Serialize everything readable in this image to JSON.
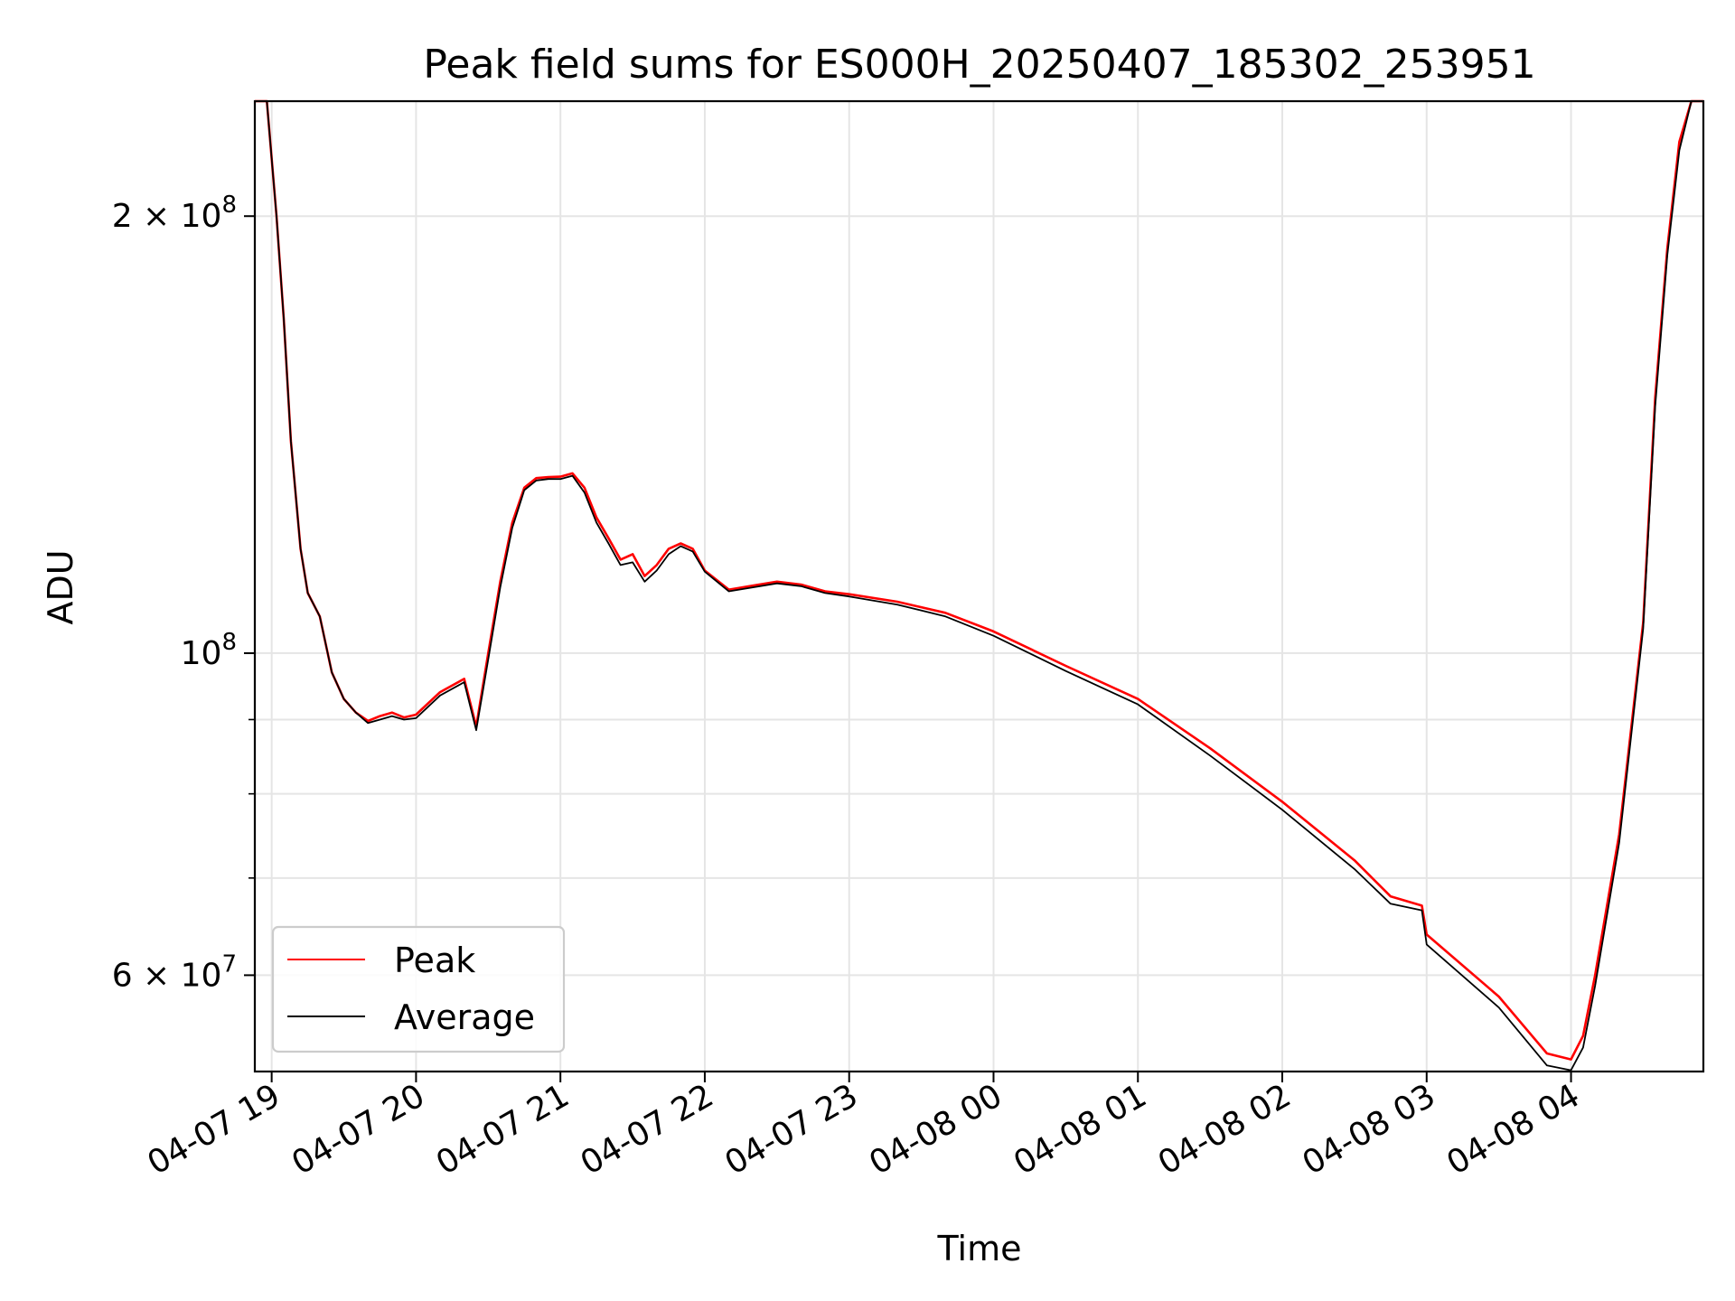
{
  "chart_data": {
    "type": "line",
    "title": "Peak field sums for ES000H_20250407_185302_253951",
    "xlabel": "Time",
    "ylabel": "ADU",
    "y_scale": "log",
    "ylim": [
      51500000,
      240000000
    ],
    "xlim": [
      "2025-04-07 18:53",
      "2025-04-08 04:55"
    ],
    "grid": true,
    "legend_position": "lower-left",
    "x_ticks": [
      "04-07 19",
      "04-07 20",
      "04-07 21",
      "04-07 22",
      "04-07 23",
      "04-08 00",
      "04-08 01",
      "04-08 02",
      "04-08 03",
      "04-08 04"
    ],
    "y_major_ticks": [
      {
        "value": 200000000,
        "mantissa": "2",
        "exponent": "8"
      },
      {
        "value": 100000000,
        "mantissa": "",
        "exponent": "8"
      },
      {
        "value": 60000000,
        "mantissa": "6",
        "exponent": "7"
      }
    ],
    "y_minor_ticks": [
      90000000,
      80000000,
      70000000
    ],
    "x": [
      "2025-04-07 18:53",
      "2025-04-07 18:58",
      "2025-04-07 19:02",
      "2025-04-07 19:05",
      "2025-04-07 19:08",
      "2025-04-07 19:12",
      "2025-04-07 19:15",
      "2025-04-07 19:20",
      "2025-04-07 19:25",
      "2025-04-07 19:30",
      "2025-04-07 19:35",
      "2025-04-07 19:40",
      "2025-04-07 19:45",
      "2025-04-07 19:50",
      "2025-04-07 19:55",
      "2025-04-07 20:00",
      "2025-04-07 20:10",
      "2025-04-07 20:20",
      "2025-04-07 20:25",
      "2025-04-07 20:30",
      "2025-04-07 20:35",
      "2025-04-07 20:40",
      "2025-04-07 20:45",
      "2025-04-07 20:50",
      "2025-04-07 20:55",
      "2025-04-07 21:00",
      "2025-04-07 21:05",
      "2025-04-07 21:10",
      "2025-04-07 21:15",
      "2025-04-07 21:20",
      "2025-04-07 21:25",
      "2025-04-07 21:30",
      "2025-04-07 21:35",
      "2025-04-07 21:40",
      "2025-04-07 21:45",
      "2025-04-07 21:50",
      "2025-04-07 21:55",
      "2025-04-07 22:00",
      "2025-04-07 22:10",
      "2025-04-07 22:20",
      "2025-04-07 22:30",
      "2025-04-07 22:40",
      "2025-04-07 22:50",
      "2025-04-07 23:00",
      "2025-04-07 23:20",
      "2025-04-07 23:40",
      "2025-04-08 00:00",
      "2025-04-08 00:30",
      "2025-04-08 01:00",
      "2025-04-08 01:30",
      "2025-04-08 02:00",
      "2025-04-08 02:30",
      "2025-04-08 02:45",
      "2025-04-08 02:58",
      "2025-04-08 03:00",
      "2025-04-08 03:30",
      "2025-04-08 03:50",
      "2025-04-08 04:00",
      "2025-04-08 04:05",
      "2025-04-08 04:10",
      "2025-04-08 04:20",
      "2025-04-08 04:30",
      "2025-04-08 04:35",
      "2025-04-08 04:40",
      "2025-04-08 04:45",
      "2025-04-08 04:50",
      "2025-04-08 04:55"
    ],
    "series": [
      {
        "name": "Peak",
        "color": "#ff0000",
        "values": [
          240000000,
          240000000,
          200000000,
          170000000,
          140000000,
          118000000,
          110000000,
          106000000,
          97000000,
          93000000,
          91000000,
          89800000,
          90500000,
          91000000,
          90300000,
          90700000,
          94000000,
          96000000,
          89000000,
          100000000,
          112000000,
          123000000,
          130000000,
          132000000,
          132200000,
          132300000,
          133000000,
          130000000,
          124000000,
          120000000,
          116000000,
          117000000,
          113000000,
          115000000,
          118000000,
          119000000,
          118000000,
          114000000,
          110600000,
          111300000,
          112000000,
          111500000,
          110300000,
          109800000,
          108500000,
          106600000,
          103500000,
          98000000,
          93000000,
          86000000,
          79000000,
          72000000,
          68000000,
          67000000,
          64000000,
          58000000,
          53000000,
          52500000,
          54500000,
          60000000,
          75000000,
          105000000,
          150000000,
          190000000,
          225000000,
          240000000,
          240000000
        ]
      },
      {
        "name": "Average",
        "color": "#000000",
        "values": [
          240000000,
          240000000,
          200000000,
          170000000,
          140000000,
          118000000,
          110000000,
          106000000,
          97000000,
          93000000,
          91000000,
          89500000,
          90000000,
          90500000,
          90000000,
          90200000,
          93500000,
          95500000,
          88500000,
          99000000,
          111000000,
          122000000,
          129500000,
          131500000,
          131800000,
          131800000,
          132500000,
          129000000,
          123000000,
          119000000,
          115000000,
          115500000,
          112000000,
          114000000,
          117000000,
          118500000,
          117500000,
          113800000,
          110300000,
          111000000,
          111700000,
          111200000,
          110000000,
          109400000,
          108000000,
          106000000,
          102800000,
          97200000,
          92200000,
          85000000,
          78000000,
          71000000,
          67200000,
          66500000,
          63000000,
          57000000,
          52000000,
          51600000,
          53500000,
          59000000,
          74000000,
          104000000,
          148000000,
          188000000,
          222000000,
          240000000,
          240000000
        ]
      }
    ]
  }
}
